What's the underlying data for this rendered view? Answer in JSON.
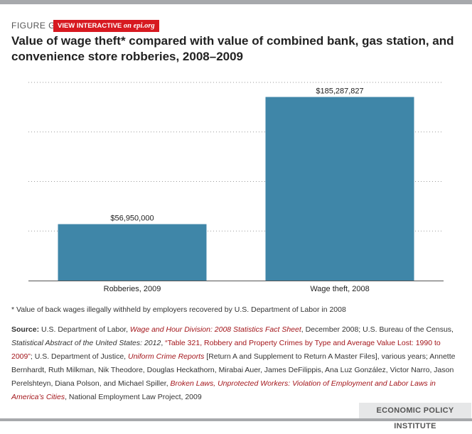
{
  "figure": {
    "label": "FIGURE G",
    "interactive_prefix": "VIEW INTERACTIVE",
    "interactive_on": "on",
    "interactive_site": "epi.org",
    "title": "Value of wage theft* compared with value of combined bank, gas station, and convenience store robberies, 2008–2009"
  },
  "chart_data": {
    "type": "bar",
    "categories": [
      "Robberies, 2009",
      "Wage theft, 2008"
    ],
    "values": [
      56950000,
      185287827
    ],
    "value_labels": [
      "$56,950,000",
      "$185,287,827"
    ],
    "ylim": [
      0,
      200000000
    ],
    "grid": true,
    "bar_color": "#3f86a8"
  },
  "footnote": "* Value of back wages illegally withheld by employers recovered by U.S. Department of Labor in 2008",
  "source": {
    "label": "Source:",
    "parts": [
      {
        "style": "plain",
        "text": " U.S. Department of Labor, "
      },
      {
        "style": "red",
        "text": "Wage and Hour Division: 2008 Statistics Fact Sheet"
      },
      {
        "style": "plain",
        "text": ", December 2008; U.S. Bureau of the Census, "
      },
      {
        "style": "it",
        "text": "Statistical Abstract of the United States: 2012"
      },
      {
        "style": "plain",
        "text": ", "
      },
      {
        "style": "red-plain",
        "text": "“Table 321, Robbery and Property Crimes by Type and Average Value Lost: 1990 to 2009”"
      },
      {
        "style": "plain",
        "text": "; U.S. Department of Justice, "
      },
      {
        "style": "red",
        "text": "Uniform Crime Reports"
      },
      {
        "style": "plain",
        "text": " [Return A and Supplement to Return A Master Files], various years; Annette Bernhardt, Ruth Milkman, Nik Theodore, Douglas Heckathorn, Mirabai Auer, James DeFilippis, Ana Luz González, Victor Narro, Jason Perelshteyn, Diana Polson, and Michael Spiller, "
      },
      {
        "style": "red",
        "text": "Broken Laws, Unprotected Workers: Violation of Employment and Labor Laws in America’s Cities"
      },
      {
        "style": "plain",
        "text": ", National Employment Law Project, 2009"
      }
    ]
  },
  "footer": "ECONOMIC POLICY INSTITUTE"
}
